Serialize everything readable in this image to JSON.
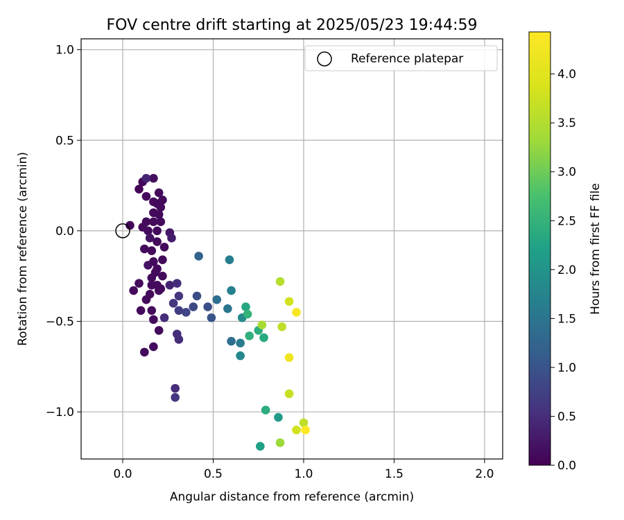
{
  "chart_data": {
    "type": "scatter",
    "title": "FOV centre drift starting at 2025/05/23 19:44:59",
    "xlabel": "Angular distance from reference (arcmin)",
    "ylabel": "Rotation from reference (arcmin)",
    "xlim": [
      -0.23,
      2.1
    ],
    "ylim": [
      -1.26,
      1.06
    ],
    "x_ticks": [
      0.0,
      0.5,
      1.0,
      1.5,
      2.0
    ],
    "y_ticks": [
      1.0,
      0.5,
      0.0,
      -0.5,
      -1.0
    ],
    "x_tick_labels": [
      "0.0",
      "0.5",
      "1.0",
      "1.5",
      "2.0"
    ],
    "y_tick_labels": [
      "1.0",
      "0.5",
      "0.0",
      "−0.5",
      "−1.0"
    ],
    "grid": true,
    "legend": {
      "placement": "top-right",
      "entries": [
        "Reference platepar"
      ]
    },
    "reference_point": {
      "x": 0.0,
      "y": 0.0,
      "label": "Reference platepar"
    },
    "colorbar": {
      "label": "Hours from first FF file",
      "colormap": "viridis",
      "range": [
        0.0,
        4.43
      ],
      "ticks": [
        0.0,
        0.5,
        1.0,
        1.5,
        2.0,
        2.5,
        3.0,
        3.5,
        4.0
      ],
      "tick_labels": [
        "0.0",
        "0.5",
        "1.0",
        "1.5",
        "2.0",
        "2.5",
        "3.0",
        "3.5",
        "4.0"
      ]
    },
    "series": [
      {
        "columns": [
          "x",
          "y",
          "hours"
        ],
        "points": [
          [
            0.04,
            0.03,
            0.05
          ],
          [
            0.09,
            0.23,
            0.05
          ],
          [
            0.11,
            0.27,
            0.05
          ],
          [
            0.13,
            0.19,
            0.1
          ],
          [
            0.17,
            0.29,
            0.15
          ],
          [
            0.13,
            0.29,
            0.4
          ],
          [
            0.17,
            0.16,
            0.1
          ],
          [
            0.19,
            0.15,
            0.1
          ],
          [
            0.2,
            0.21,
            0.1
          ],
          [
            0.21,
            0.13,
            0.1
          ],
          [
            0.22,
            0.17,
            0.1
          ],
          [
            0.17,
            0.1,
            0.1
          ],
          [
            0.2,
            0.09,
            0.1
          ],
          [
            0.17,
            0.05,
            0.1
          ],
          [
            0.21,
            0.05,
            0.1
          ],
          [
            0.13,
            0.05,
            0.1
          ],
          [
            0.11,
            0.02,
            0.1
          ],
          [
            0.14,
            0.0,
            0.1
          ],
          [
            0.19,
            0.0,
            0.1
          ],
          [
            0.15,
            -0.04,
            0.2
          ],
          [
            0.19,
            -0.06,
            0.1
          ],
          [
            0.12,
            -0.1,
            0.1
          ],
          [
            0.16,
            -0.11,
            0.1
          ],
          [
            0.23,
            -0.09,
            0.1
          ],
          [
            0.22,
            -0.16,
            0.1
          ],
          [
            0.14,
            -0.19,
            0.2
          ],
          [
            0.17,
            -0.17,
            0.1
          ],
          [
            0.18,
            -0.23,
            0.1
          ],
          [
            0.19,
            -0.21,
            0.1
          ],
          [
            0.22,
            -0.25,
            0.1
          ],
          [
            0.16,
            -0.26,
            0.1
          ],
          [
            0.16,
            -0.3,
            0.1
          ],
          [
            0.19,
            -0.3,
            0.1
          ],
          [
            0.21,
            -0.32,
            0.1
          ],
          [
            0.09,
            -0.29,
            0.1
          ],
          [
            0.06,
            -0.33,
            0.1
          ],
          [
            0.15,
            -0.35,
            0.1
          ],
          [
            0.13,
            -0.38,
            0.1
          ],
          [
            0.2,
            -0.33,
            0.1
          ],
          [
            0.1,
            -0.44,
            0.1
          ],
          [
            0.16,
            -0.44,
            0.1
          ],
          [
            0.17,
            -0.49,
            0.1
          ],
          [
            0.2,
            -0.55,
            0.1
          ],
          [
            0.17,
            -0.64,
            0.1
          ],
          [
            0.12,
            -0.67,
            0.1
          ],
          [
            0.26,
            -0.01,
            0.25
          ],
          [
            0.27,
            -0.04,
            0.3
          ],
          [
            0.26,
            -0.3,
            0.4
          ],
          [
            0.3,
            -0.29,
            0.5
          ],
          [
            0.28,
            -0.4,
            0.6
          ],
          [
            0.23,
            -0.48,
            0.5
          ],
          [
            0.31,
            -0.36,
            0.6
          ],
          [
            0.31,
            -0.44,
            0.7
          ],
          [
            0.3,
            -0.57,
            0.5
          ],
          [
            0.31,
            -0.6,
            0.5
          ],
          [
            0.29,
            -0.87,
            0.5
          ],
          [
            0.29,
            -0.92,
            0.6
          ],
          [
            0.35,
            -0.45,
            0.8
          ],
          [
            0.39,
            -0.42,
            0.85
          ],
          [
            0.41,
            -0.36,
            0.9
          ],
          [
            0.42,
            -0.14,
            1.2
          ],
          [
            0.47,
            -0.42,
            0.95
          ],
          [
            0.49,
            -0.48,
            1.0
          ],
          [
            0.52,
            -0.38,
            1.4
          ],
          [
            0.58,
            -0.43,
            1.5
          ],
          [
            0.59,
            -0.16,
            1.65
          ],
          [
            0.6,
            -0.33,
            1.7
          ],
          [
            0.6,
            -0.61,
            1.4
          ],
          [
            0.65,
            -0.62,
            1.6
          ],
          [
            0.65,
            -0.69,
            1.8
          ],
          [
            0.66,
            -0.48,
            1.85
          ],
          [
            0.68,
            -0.42,
            2.3
          ],
          [
            0.69,
            -0.46,
            2.5
          ],
          [
            0.7,
            -0.58,
            2.45
          ],
          [
            0.75,
            -0.55,
            2.4
          ],
          [
            0.77,
            -0.52,
            3.4
          ],
          [
            0.78,
            -0.59,
            2.35
          ],
          [
            0.79,
            -0.99,
            2.4
          ],
          [
            0.86,
            -1.03,
            2.1
          ],
          [
            0.87,
            -1.17,
            3.3
          ],
          [
            0.76,
            -1.19,
            2.2
          ],
          [
            0.87,
            -0.28,
            3.55
          ],
          [
            0.88,
            -0.53,
            3.6
          ],
          [
            0.92,
            -0.39,
            3.8
          ],
          [
            0.92,
            -0.9,
            3.7
          ],
          [
            0.92,
            -0.7,
            4.2
          ],
          [
            0.96,
            -0.45,
            4.35
          ],
          [
            0.96,
            -1.1,
            3.8
          ],
          [
            1.0,
            -1.06,
            3.6
          ],
          [
            1.01,
            -1.1,
            4.4
          ]
        ]
      }
    ]
  }
}
